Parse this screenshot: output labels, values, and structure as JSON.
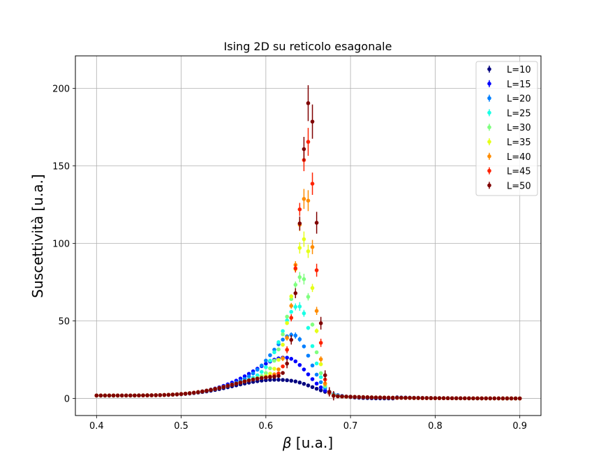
{
  "chart_data": {
    "type": "scatter",
    "title": "Ising 2D su reticolo esagonale",
    "xlabel_symbol": "β",
    "xlabel_unit": " [u.a.]",
    "ylabel": "Suscettività [u.a.]",
    "xlim": [
      0.375,
      0.925
    ],
    "ylim": [
      -11,
      221
    ],
    "xticks": [
      0.4,
      0.5,
      0.6,
      0.7,
      0.8,
      0.9
    ],
    "xtick_labels": [
      "0.4",
      "0.5",
      "0.6",
      "0.7",
      "0.8",
      "0.9"
    ],
    "yticks": [
      0,
      50,
      100,
      150,
      200
    ],
    "ytick_labels": [
      "0",
      "50",
      "100",
      "150",
      "200"
    ],
    "grid": true,
    "legend_position": "top-right",
    "series": [
      {
        "name": "L=10",
        "color": "#00007f",
        "peak": 12,
        "beta_c": 0.615,
        "width": 0.045,
        "err": 0
      },
      {
        "name": "L=15",
        "color": "#0000ff",
        "peak": 25,
        "beta_c": 0.628,
        "width": 0.032,
        "err": 0.6
      },
      {
        "name": "L=20",
        "color": "#007fff",
        "peak": 41,
        "beta_c": 0.635,
        "width": 0.025,
        "err": 1.0
      },
      {
        "name": "L=25",
        "color": "#19ffe5",
        "peak": 61,
        "beta_c": 0.64,
        "width": 0.02,
        "err": 1.4
      },
      {
        "name": "L=30",
        "color": "#7fff7f",
        "peak": 81,
        "beta_c": 0.643,
        "width": 0.017,
        "err": 1.8
      },
      {
        "name": "L=35",
        "color": "#e5ff19",
        "peak": 106,
        "beta_c": 0.646,
        "width": 0.015,
        "err": 2.5
      },
      {
        "name": "L=40",
        "color": "#ff8c00",
        "peak": 135,
        "beta_c": 0.648,
        "width": 0.013,
        "err": 3.5
      },
      {
        "name": "L=45",
        "color": "#ff2200",
        "peak": 170,
        "beta_c": 0.65,
        "width": 0.012,
        "err": 4.5
      },
      {
        "name": "L=50",
        "color": "#7f0000",
        "peak": 198,
        "beta_c": 0.652,
        "width": 0.011,
        "err": 6
      }
    ],
    "x_start": 0.4,
    "x_end": 0.9,
    "x_step": 0.005,
    "background_a": 1.9,
    "background_b": 12.0,
    "background_b2": 28.0
  }
}
